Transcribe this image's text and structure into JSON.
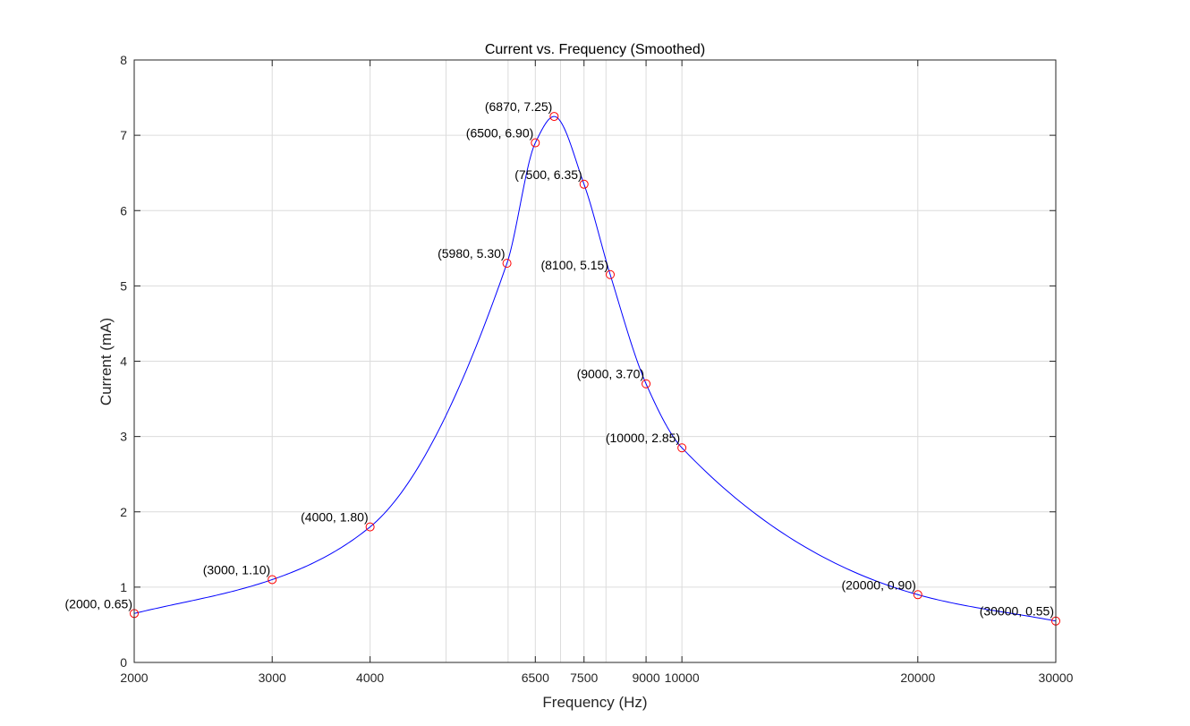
{
  "chart_data": {
    "type": "line",
    "title": "Current vs. Frequency (Smoothed)",
    "xlabel": "Frequency (Hz)",
    "ylabel": "Current (mA)",
    "x_scale": "log",
    "xlim": [
      2000,
      30000
    ],
    "ylim": [
      0,
      8
    ],
    "grid": true,
    "x_ticks": [
      2000,
      3000,
      4000,
      6500,
      7500,
      9000,
      10000,
      20000,
      30000
    ],
    "x_tick_labels": [
      "2000",
      "3000",
      "4000",
      "6500",
      "7500",
      "9000",
      "10000",
      "20000",
      "30000"
    ],
    "x_minor_grid": [
      5000,
      6000,
      7000,
      8000
    ],
    "y_ticks": [
      0,
      1,
      2,
      3,
      4,
      5,
      6,
      7,
      8
    ],
    "y_tick_labels": [
      "0",
      "1",
      "2",
      "3",
      "4",
      "5",
      "6",
      "7",
      "8"
    ],
    "series": [
      {
        "style": "smoothed line with circle markers",
        "line_color": "#0000ff",
        "marker_color": "#ff0000",
        "points": [
          {
            "x": 2000,
            "y": 0.65,
            "label": "(2000, 0.65)"
          },
          {
            "x": 3000,
            "y": 1.1,
            "label": "(3000, 1.10)"
          },
          {
            "x": 4000,
            "y": 1.8,
            "label": "(4000, 1.80)"
          },
          {
            "x": 5980,
            "y": 5.3,
            "label": "(5980, 5.30)"
          },
          {
            "x": 6500,
            "y": 6.9,
            "label": "(6500, 6.90)"
          },
          {
            "x": 6870,
            "y": 7.25,
            "label": "(6870, 7.25)"
          },
          {
            "x": 7500,
            "y": 6.35,
            "label": "(7500, 6.35)"
          },
          {
            "x": 8100,
            "y": 5.15,
            "label": "(8100, 5.15)"
          },
          {
            "x": 9000,
            "y": 3.7,
            "label": "(9000, 3.70)"
          },
          {
            "x": 10000,
            "y": 2.85,
            "label": "(10000, 2.85)"
          },
          {
            "x": 20000,
            "y": 0.9,
            "label": "(20000, 0.90)"
          },
          {
            "x": 30000,
            "y": 0.55,
            "label": "(30000, 0.55)"
          }
        ]
      }
    ]
  }
}
